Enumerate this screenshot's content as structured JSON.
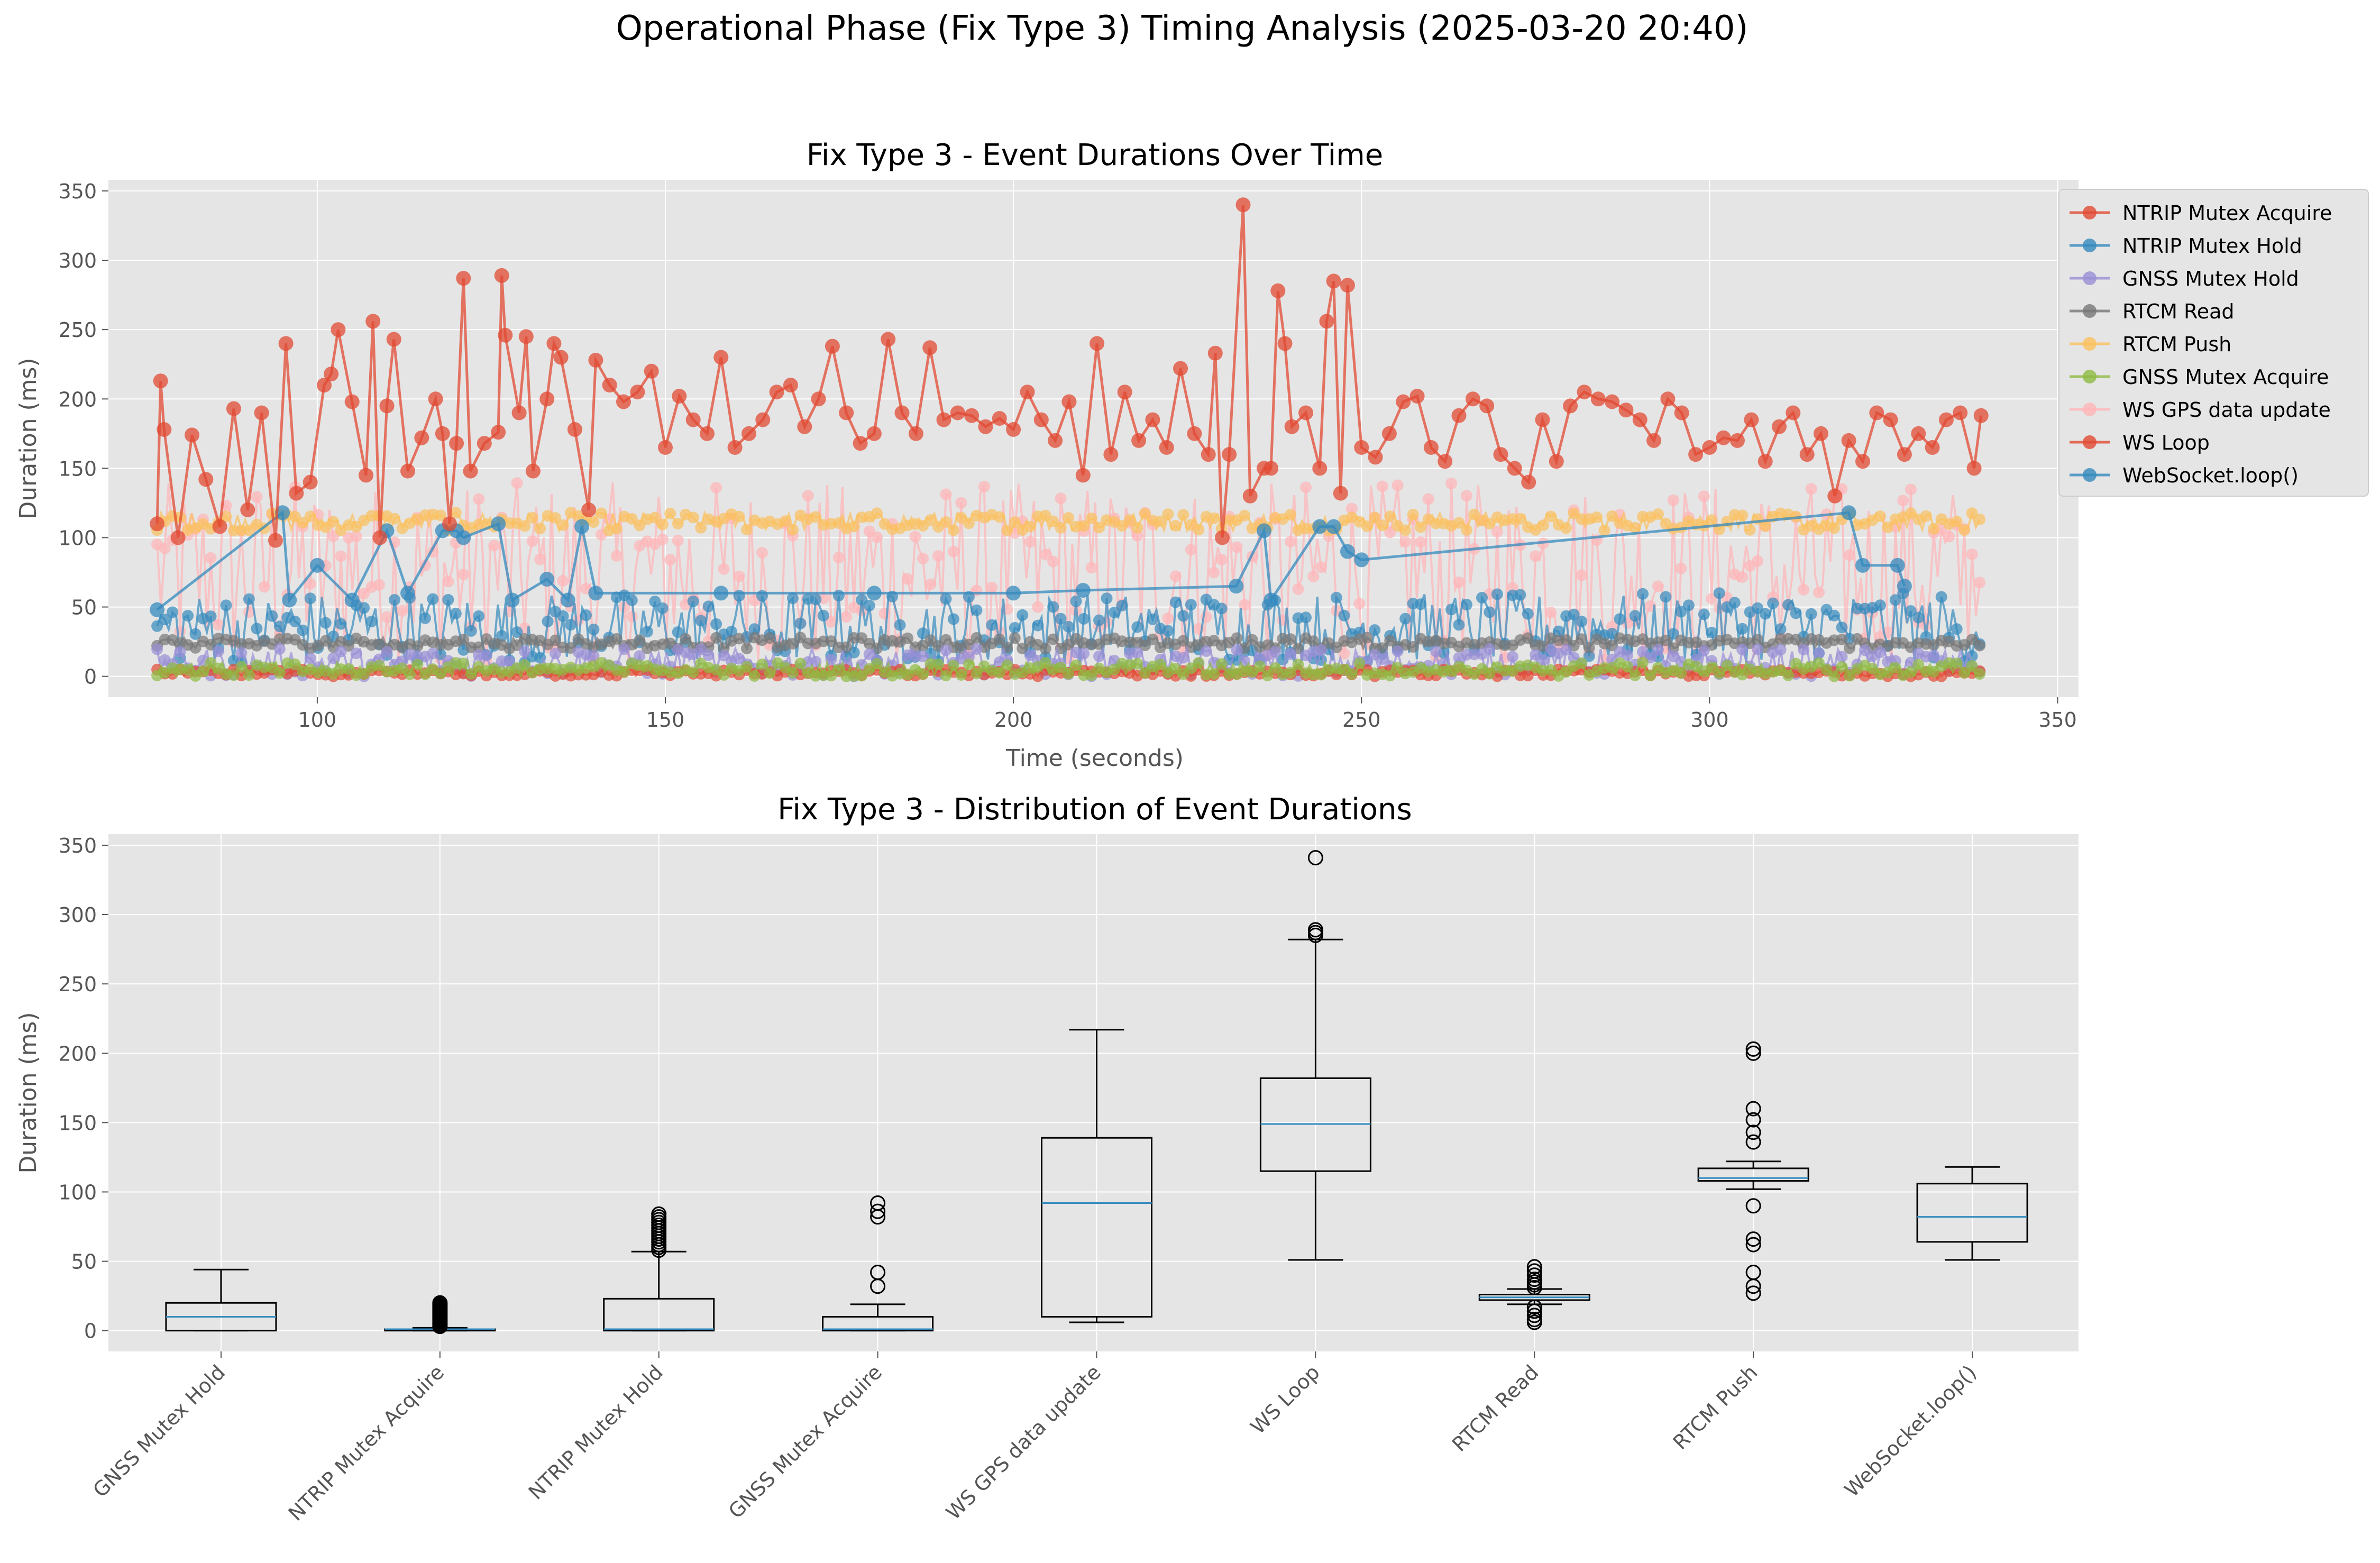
{
  "suptitle": "Operational Phase (Fix Type 3) Timing Analysis (2025-03-20 20:40)",
  "colors": {
    "background": "#ffffff",
    "axes_face": "#e5e5e5",
    "grid": "#ffffff",
    "box_median": "#348abd"
  },
  "chart_data": [
    {
      "type": "line",
      "title": "Fix Type 3 - Event Durations Over Time",
      "xlabel": "Time (seconds)",
      "ylabel": "Duration (ms)",
      "xlim": [
        70,
        353
      ],
      "ylim": [
        -15,
        358
      ],
      "xticks": [
        100,
        150,
        200,
        250,
        300,
        350
      ],
      "yticks": [
        0,
        50,
        100,
        150,
        200,
        250,
        300,
        350
      ],
      "grid": true,
      "legend_position": "upper right (outside)",
      "series": [
        {
          "name": "NTRIP Mutex Acquire",
          "color": "#e24a33"
        },
        {
          "name": "NTRIP Mutex Hold",
          "color": "#348abd"
        },
        {
          "name": "GNSS Mutex Hold",
          "color": "#988ed5"
        },
        {
          "name": "RTCM Read",
          "color": "#777777"
        },
        {
          "name": "RTCM Push",
          "color": "#fbc15e"
        },
        {
          "name": "GNSS Mutex Acquire",
          "color": "#8eba42"
        },
        {
          "name": "WS GPS data update",
          "color": "#ffb5b8"
        },
        {
          "name": "WS Loop",
          "color": "#e24a33"
        },
        {
          "name": "WebSocket.loop()",
          "color": "#348abd"
        }
      ],
      "trace_points": {
        "WS Loop": [
          [
            77,
            110
          ],
          [
            77.5,
            213
          ],
          [
            78,
            178
          ],
          [
            80,
            100
          ],
          [
            82,
            174
          ],
          [
            84,
            142
          ],
          [
            86,
            108
          ],
          [
            88,
            193
          ],
          [
            90,
            120
          ],
          [
            92,
            190
          ],
          [
            94,
            98
          ],
          [
            95.5,
            240
          ],
          [
            97,
            132
          ],
          [
            99,
            140
          ],
          [
            101,
            210
          ],
          [
            102,
            218
          ],
          [
            103,
            250
          ],
          [
            105,
            198
          ],
          [
            107,
            145
          ],
          [
            108,
            256
          ],
          [
            109,
            100
          ],
          [
            110,
            195
          ],
          [
            111,
            243
          ],
          [
            113,
            148
          ],
          [
            115,
            172
          ],
          [
            117,
            200
          ],
          [
            118,
            175
          ],
          [
            119,
            110
          ],
          [
            120,
            168
          ],
          [
            121,
            287
          ],
          [
            122,
            148
          ],
          [
            124,
            168
          ],
          [
            126,
            176
          ],
          [
            126.5,
            289
          ],
          [
            127,
            246
          ],
          [
            129,
            190
          ],
          [
            130,
            245
          ],
          [
            131,
            148
          ],
          [
            133,
            200
          ],
          [
            134,
            240
          ],
          [
            135,
            230
          ],
          [
            137,
            178
          ],
          [
            139,
            120
          ],
          [
            140,
            228
          ],
          [
            142,
            210
          ],
          [
            144,
            198
          ],
          [
            146,
            205
          ],
          [
            148,
            220
          ],
          [
            150,
            165
          ],
          [
            152,
            202
          ],
          [
            154,
            185
          ],
          [
            156,
            175
          ],
          [
            158,
            230
          ],
          [
            160,
            165
          ],
          [
            162,
            175
          ],
          [
            164,
            185
          ],
          [
            166,
            205
          ],
          [
            168,
            210
          ],
          [
            170,
            180
          ],
          [
            172,
            200
          ],
          [
            174,
            238
          ],
          [
            176,
            190
          ],
          [
            178,
            168
          ],
          [
            180,
            175
          ],
          [
            182,
            243
          ],
          [
            184,
            190
          ],
          [
            186,
            175
          ],
          [
            188,
            237
          ],
          [
            190,
            185
          ],
          [
            192,
            190
          ],
          [
            194,
            188
          ],
          [
            196,
            180
          ],
          [
            198,
            186
          ],
          [
            200,
            178
          ],
          [
            202,
            205
          ],
          [
            204,
            185
          ],
          [
            206,
            170
          ],
          [
            208,
            198
          ],
          [
            210,
            145
          ],
          [
            212,
            240
          ],
          [
            214,
            160
          ],
          [
            216,
            205
          ],
          [
            218,
            170
          ],
          [
            220,
            185
          ],
          [
            222,
            165
          ],
          [
            224,
            222
          ],
          [
            226,
            175
          ],
          [
            228,
            160
          ],
          [
            229,
            233
          ],
          [
            230,
            100
          ],
          [
            231,
            160
          ],
          [
            233,
            340
          ],
          [
            234,
            130
          ],
          [
            236,
            150
          ],
          [
            237,
            150
          ],
          [
            238,
            278
          ],
          [
            239,
            240
          ],
          [
            240,
            180
          ],
          [
            242,
            190
          ],
          [
            244,
            150
          ],
          [
            245,
            256
          ],
          [
            246,
            285
          ],
          [
            247,
            132
          ],
          [
            248,
            282
          ],
          [
            250,
            165
          ],
          [
            252,
            158
          ],
          [
            254,
            175
          ],
          [
            256,
            198
          ],
          [
            258,
            202
          ],
          [
            260,
            165
          ],
          [
            262,
            155
          ],
          [
            264,
            188
          ],
          [
            266,
            200
          ],
          [
            268,
            195
          ],
          [
            270,
            160
          ],
          [
            272,
            150
          ],
          [
            274,
            140
          ],
          [
            276,
            185
          ],
          [
            278,
            155
          ],
          [
            280,
            195
          ],
          [
            282,
            205
          ],
          [
            284,
            200
          ],
          [
            286,
            198
          ],
          [
            288,
            192
          ],
          [
            290,
            185
          ],
          [
            292,
            170
          ],
          [
            294,
            200
          ],
          [
            296,
            190
          ],
          [
            298,
            160
          ],
          [
            300,
            165
          ],
          [
            302,
            172
          ],
          [
            304,
            170
          ],
          [
            306,
            185
          ],
          [
            308,
            155
          ],
          [
            310,
            180
          ],
          [
            312,
            190
          ],
          [
            314,
            160
          ],
          [
            316,
            175
          ],
          [
            318,
            130
          ],
          [
            320,
            170
          ],
          [
            322,
            155
          ],
          [
            324,
            190
          ],
          [
            326,
            185
          ],
          [
            328,
            160
          ],
          [
            330,
            175
          ],
          [
            332,
            165
          ],
          [
            334,
            185
          ],
          [
            336,
            190
          ],
          [
            338,
            150
          ],
          [
            339,
            188
          ]
        ],
        "WebSocket.loop()": [
          [
            77,
            48
          ],
          [
            95,
            118
          ],
          [
            96,
            55
          ],
          [
            100,
            80
          ],
          [
            105,
            55
          ],
          [
            110,
            105
          ],
          [
            113,
            60
          ],
          [
            118,
            105
          ],
          [
            120,
            105
          ],
          [
            121,
            100
          ],
          [
            126,
            110
          ],
          [
            128,
            55
          ],
          [
            133,
            70
          ],
          [
            136,
            55
          ],
          [
            138,
            108
          ],
          [
            140,
            60
          ],
          [
            158,
            60
          ],
          [
            180,
            60
          ],
          [
            200,
            60
          ],
          [
            210,
            62
          ],
          [
            232,
            65
          ],
          [
            236,
            105
          ],
          [
            237,
            55
          ],
          [
            244,
            108
          ],
          [
            246,
            108
          ],
          [
            248,
            90
          ],
          [
            250,
            84
          ],
          [
            320,
            118
          ],
          [
            322,
            80
          ],
          [
            327,
            80
          ],
          [
            328,
            65
          ]
        ]
      },
      "baseline_bands": {
        "NTRIP Mutex Acquire": [
          0,
          5
        ],
        "NTRIP Mutex Hold": [
          10,
          60
        ],
        "GNSS Mutex Hold": [
          0,
          20
        ],
        "RTCM Read": [
          20,
          28
        ],
        "RTCM Push": [
          105,
          118
        ],
        "GNSS Mutex Acquire": [
          0,
          10
        ],
        "WS GPS data update": [
          10,
          140
        ]
      }
    },
    {
      "type": "box",
      "title": "Fix Type 3 - Distribution of Event Durations",
      "ylabel": "Duration (ms)",
      "ylim": [
        -15,
        358
      ],
      "yticks": [
        0,
        50,
        100,
        150,
        200,
        250,
        300,
        350
      ],
      "grid": true,
      "categories": [
        "GNSS Mutex Hold",
        "NTRIP Mutex Acquire",
        "NTRIP Mutex Hold",
        "GNSS Mutex Acquire",
        "WS GPS data update",
        "WS Loop",
        "RTCM Read",
        "RTCM Push",
        "WebSocket.loop()"
      ],
      "boxes": [
        {
          "whisker_low": 0,
          "q1": 0,
          "median": 10,
          "q3": 20,
          "whisker_high": 44,
          "outliers": []
        },
        {
          "whisker_low": 0,
          "q1": 0,
          "median": 1,
          "q3": 1,
          "whisker_high": 2,
          "outliers": [
            3,
            4,
            5,
            6,
            7,
            8,
            9,
            10,
            11,
            12,
            13,
            14,
            15,
            16,
            17,
            18,
            19,
            20
          ]
        },
        {
          "whisker_low": 0,
          "q1": 0,
          "median": 1,
          "q3": 23,
          "whisker_high": 57,
          "outliers": [
            58,
            60,
            62,
            64,
            66,
            68,
            70,
            72,
            74,
            76,
            78,
            80,
            82,
            84
          ]
        },
        {
          "whisker_low": 0,
          "q1": 0,
          "median": 1,
          "q3": 10,
          "whisker_high": 19,
          "outliers": [
            32,
            42,
            82,
            86,
            92
          ]
        },
        {
          "whisker_low": 6,
          "q1": 10,
          "median": 92,
          "q3": 139,
          "whisker_high": 217,
          "outliers": []
        },
        {
          "whisker_low": 51,
          "q1": 115,
          "median": 149,
          "q3": 182,
          "whisker_high": 282,
          "outliers": [
            285,
            287,
            289,
            341
          ]
        },
        {
          "whisker_low": 19,
          "q1": 22,
          "median": 24,
          "q3": 26,
          "whisker_high": 30,
          "outliers": [
            6,
            8,
            11,
            14,
            17,
            31,
            33,
            35,
            37,
            40,
            43,
            46
          ]
        },
        {
          "whisker_low": 102,
          "q1": 108,
          "median": 110,
          "q3": 117,
          "whisker_high": 122,
          "outliers": [
            27,
            32,
            42,
            62,
            66,
            90,
            136,
            143,
            152,
            160,
            200,
            203
          ]
        },
        {
          "whisker_low": 51,
          "q1": 64,
          "median": 82,
          "q3": 106,
          "whisker_high": 118,
          "outliers": []
        }
      ]
    }
  ]
}
